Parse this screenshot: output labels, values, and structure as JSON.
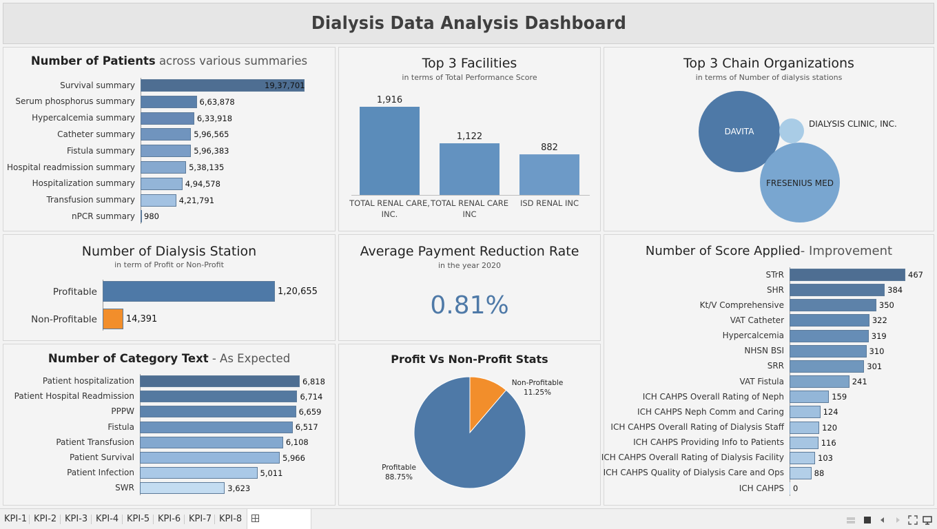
{
  "dashboard": {
    "title": "Dialysis Data Analysis Dashboard"
  },
  "patients": {
    "title_bold": "Number of Patients",
    "title_rest": " across various summaries",
    "chart_data": {
      "type": "bar",
      "orientation": "horizontal",
      "categories": [
        "Survival summary",
        "Serum phosphorus summary",
        "Hypercalcemia summary",
        "Catheter summary",
        "Fistula summary",
        "Hospital readmission summary",
        "Hospitalization summary",
        "Transfusion summary",
        "nPCR summary"
      ],
      "values": [
        1937701,
        663878,
        633918,
        596565,
        596383,
        538135,
        494578,
        421791,
        980
      ],
      "labels": [
        "19,37,701",
        "6,63,878",
        "6,33,918",
        "5,96,565",
        "5,96,383",
        "5,38,135",
        "4,94,578",
        "4,21,791",
        "980"
      ],
      "colors": [
        "#4e6e92",
        "#5a80aa",
        "#6688b4",
        "#7094be",
        "#7a9dc6",
        "#86a9cf",
        "#93b5d8",
        "#a3c2e2",
        "#b5d1ea"
      ]
    }
  },
  "facilities": {
    "title": "Top 3 Facilities",
    "subtitle": "in terms of Total Performance Score",
    "chart_data": {
      "type": "bar",
      "categories": [
        "TOTAL RENAL CARE, INC.",
        "TOTAL RENAL CARE INC",
        "ISD RENAL INC"
      ],
      "category_lines": [
        [
          "TOTAL RENAL CARE,",
          "INC."
        ],
        [
          "TOTAL RENAL CARE",
          "INC"
        ],
        [
          "ISD RENAL INC"
        ]
      ],
      "values": [
        1916,
        1122,
        882
      ],
      "labels": [
        "1,916",
        "1,122",
        "882"
      ],
      "colors": [
        "#5b8cba",
        "#6392c0",
        "#6d9ac7"
      ]
    }
  },
  "chains": {
    "title": "Top 3 Chain Organizations",
    "subtitle": "in terms of Number of dialysis stations",
    "bubbles": [
      {
        "label": "DAVITA",
        "color": "#4e79a7"
      },
      {
        "label": "DIALYSIS CLINIC, INC.",
        "color": "#a9cce6"
      },
      {
        "label": "FRESENIUS MED",
        "color": "#79a6d0"
      }
    ]
  },
  "stations": {
    "title": "Number of Dialysis Station",
    "subtitle": "in term of Profit or Non-Profit",
    "chart_data": {
      "type": "bar",
      "orientation": "horizontal",
      "categories": [
        "Profitable",
        "Non-Profitable"
      ],
      "values": [
        120655,
        14391
      ],
      "labels": [
        "1,20,655",
        "14,391"
      ],
      "colors": [
        "#4e79a7",
        "#f28e2b"
      ]
    }
  },
  "payment": {
    "title": "Average Payment Reduction Rate",
    "subtitle": "in the year 2020",
    "value": "0.81%",
    "color": "#4e79a7"
  },
  "score": {
    "title_main": "Number of Score Applied",
    "title_rest": "- Improvement",
    "chart_data": {
      "type": "bar",
      "orientation": "horizontal",
      "categories": [
        "STrR",
        "SHR",
        "Kt/V Comprehensive",
        "VAT Catheter",
        "Hypercalcemia",
        "NHSN BSI",
        "SRR",
        "VAT Fistula",
        "ICH CAHPS Overall Rating of Neph",
        "ICH CAHPS Neph Comm and Caring",
        "ICH CAHPS Overall Rating of Dialysis Staff",
        "ICH CAHPS Providing Info to Patients",
        "ICH CAHPS Overall Rating of Dialysis Facility",
        "ICH CAHPS Quality of Dialysis Care and Ops",
        "ICH CAHPS"
      ],
      "values": [
        467,
        384,
        350,
        322,
        319,
        310,
        301,
        241,
        159,
        124,
        120,
        116,
        103,
        88,
        0
      ],
      "labels": [
        "467",
        "384",
        "350",
        "322",
        "319",
        "310",
        "301",
        "241",
        "159",
        "124",
        "120",
        "116",
        "103",
        "88",
        "0"
      ],
      "colors": [
        "#4e6e92",
        "#56799f",
        "#5d82a9",
        "#6189b2",
        "#668db6",
        "#6b92ba",
        "#7097bd",
        "#7ea4c8",
        "#93b6d8",
        "#9fc0df",
        "#a2c2e0",
        "#a6c5e2",
        "#aecbe6",
        "#b3cfe8",
        "#b9d3ea"
      ]
    }
  },
  "category": {
    "title_bold": "Number of Category Text",
    "title_rest": " - As Expected",
    "chart_data": {
      "type": "bar",
      "orientation": "horizontal",
      "categories": [
        "Patient hospitalization",
        "Patient Hospital Readmission",
        "PPPW",
        "Fistula",
        "Patient Transfusion",
        "Patient Survival",
        "Patient Infection",
        "SWR"
      ],
      "values": [
        6818,
        6714,
        6659,
        6517,
        6108,
        5966,
        5011,
        3623
      ],
      "labels": [
        "6,818",
        "6,714",
        "6,659",
        "6,517",
        "6,108",
        "5,966",
        "5,011",
        "3,623"
      ],
      "colors": [
        "#4e6e92",
        "#5479a0",
        "#5d84ad",
        "#6c93bd",
        "#83a8cf",
        "#94b7dc",
        "#aac9e7",
        "#c3dcf1"
      ]
    }
  },
  "pie": {
    "title": "Profit Vs Non-Profit Stats",
    "chart_data": {
      "type": "pie",
      "categories": [
        "Profitable",
        "Non-Profitable"
      ],
      "values": [
        88.75,
        11.25
      ],
      "labels": [
        "88.75%",
        "11.25%"
      ],
      "colors": [
        "#4e79a7",
        "#f28e2b"
      ]
    }
  },
  "tabs": [
    "KPI-1",
    "KPI-2",
    "KPI-3",
    "KPI-4",
    "KPI-5",
    "KPI-6",
    "KPI-7",
    "KPI-8",
    "Dashboard"
  ],
  "active_tab": "Dashboard"
}
